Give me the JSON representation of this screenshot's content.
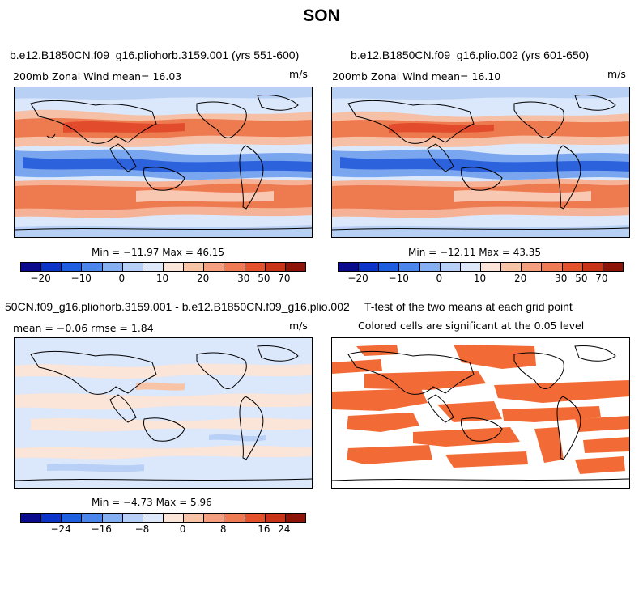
{
  "title": "SON",
  "panels": [
    {
      "title": "b.e12.B1850CN.f09_g16.pliohorb.3159.001 (yrs 551-600)",
      "left_label": "200mb Zonal Wind  mean=  16.03",
      "right_label": "m/s",
      "minmax": "Min = −11.97 Max =  46.15"
    },
    {
      "title": "b.e12.B1850CN.f09_g16.plio.002 (yrs 601-650)",
      "left_label": "200mb Zonal Wind  mean=  16.10",
      "right_label": "m/s",
      "minmax": "Min = −12.11 Max =  43.35"
    },
    {
      "title": "50CN.f09_g16.pliohorb.3159.001 - b.e12.B1850CN.f09_g16.plio.002",
      "left_label": "mean =  −0.06    rmse =   1.84",
      "right_label": "m/s",
      "minmax": "Min =  −4.73 Max =   5.96"
    },
    {
      "title": "T-test of the two means at each grid point",
      "subtitle": "Colored cells are significant at the 0.05 level"
    }
  ],
  "colorbars": {
    "wind": {
      "colors": [
        "#0a0a8c",
        "#0d34c8",
        "#1e5fe0",
        "#4a86ec",
        "#86aef2",
        "#b8d0f6",
        "#dde9fa",
        "#fbe4d8",
        "#f8c4a8",
        "#f4a080",
        "#ef7b55",
        "#e4522c",
        "#c83418",
        "#8c1408"
      ],
      "ticks": [
        "−20",
        "−10",
        "0",
        "10",
        "20",
        "30",
        "50",
        "70"
      ]
    },
    "diff": {
      "colors": [
        "#0a0a8c",
        "#0d34c8",
        "#1e5fe0",
        "#4a86ec",
        "#86aef2",
        "#b8d0f6",
        "#dde9fa",
        "#fbe4d8",
        "#f8c4a8",
        "#f4a080",
        "#ef7b55",
        "#e4522c",
        "#c83418",
        "#8c1408"
      ],
      "ticks": [
        "−24",
        "−16",
        "−8",
        "0",
        "8",
        "16",
        "24"
      ]
    }
  },
  "colors": {
    "significant": "#f26b36",
    "strong_westerly": "#ef6a3c",
    "easterly": "#2c62dc"
  }
}
